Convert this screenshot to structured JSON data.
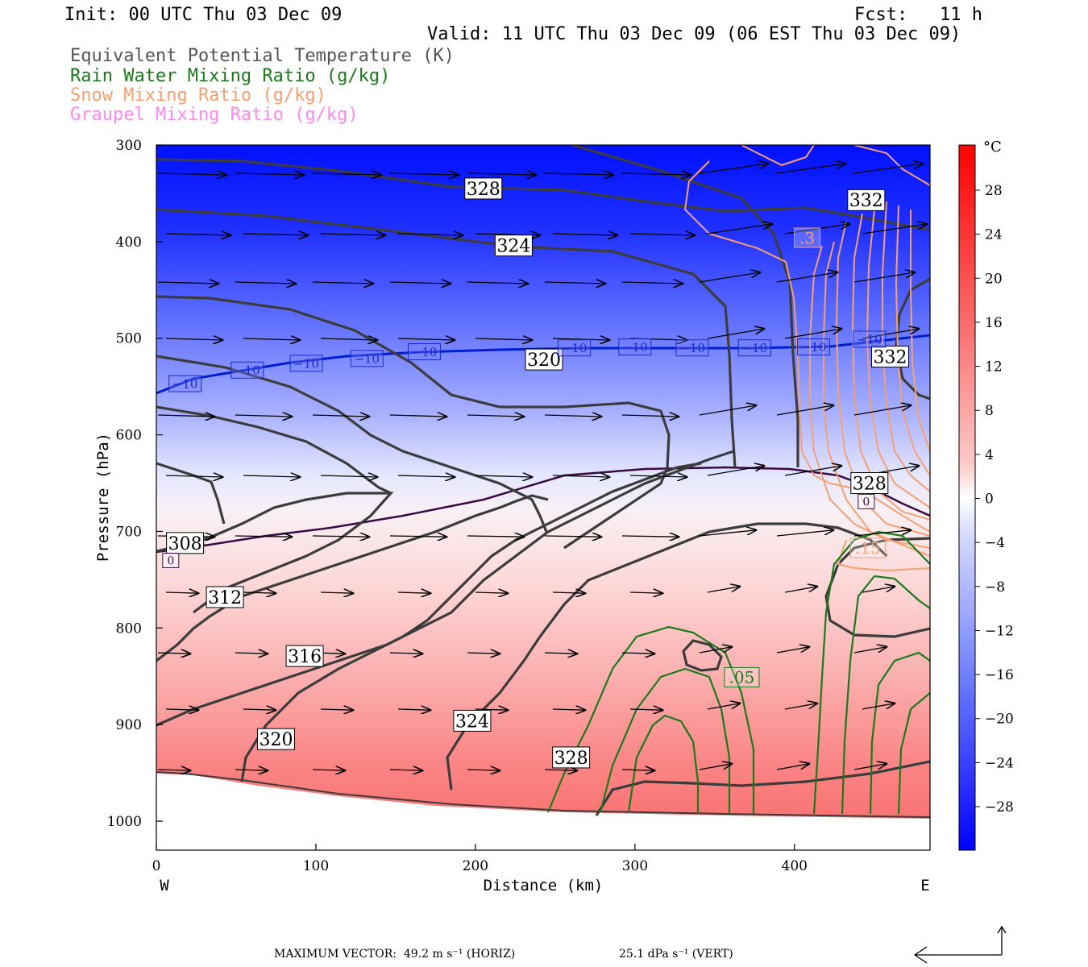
{
  "header": {
    "init": "Init: 00 UTC Thu 03 Dec 09",
    "fcst": "Fcst:   11 h",
    "valid": "Valid: 11 UTC Thu 03 Dec 09 (06 EST Thu 03 Dec 09)"
  },
  "fields": [
    {
      "label": "Equivalent Potential Temperature (K)",
      "color": "#555555"
    },
    {
      "label": "Rain Water Mixing Ratio (g/kg)",
      "color": "#1a7a1a"
    },
    {
      "label": "Snow Mixing Ratio (g/kg)",
      "color": "#f4a070"
    },
    {
      "label": "Graupel Mixing Ratio (g/kg)",
      "color": "#ff88ee"
    }
  ],
  "colorbar": {
    "unit": "°C",
    "ticks": [
      "28",
      "24",
      "20",
      "16",
      "12",
      "8",
      "4",
      "0",
      "−4",
      "−8",
      "−12",
      "−16",
      "−20",
      "−24",
      "−28"
    ]
  },
  "footer": {
    "max_vector": "MAXIMUM VECTOR:  49.2 m s⁻¹ (HORIZ)",
    "vert": "25.1 dPa s⁻¹ (VERT)"
  },
  "chart_data": {
    "type": "contour",
    "xlabel": "Distance (km)",
    "ylabel": "Pressure (hPa)",
    "xlim": [
      0,
      485
    ],
    "ylim": [
      1030,
      300
    ],
    "x_ticks": [
      0,
      100,
      200,
      300,
      400
    ],
    "y_ticks": [
      300,
      400,
      500,
      600,
      700,
      800,
      900,
      1000
    ],
    "x_end_labels": {
      "left": "W",
      "right": "E"
    },
    "theta_e_labels": [
      {
        "text": "328",
        "x": 205,
        "p": 345
      },
      {
        "text": "324",
        "x": 224,
        "p": 404
      },
      {
        "text": "320",
        "x": 243,
        "p": 522
      },
      {
        "text": "332",
        "x": 445,
        "p": 357
      },
      {
        "text": "332",
        "x": 460,
        "p": 519
      },
      {
        "text": "328",
        "x": 447,
        "p": 650
      },
      {
        "text": "308",
        "x": 18,
        "p": 712
      },
      {
        "text": "312",
        "x": 43,
        "p": 768
      },
      {
        "text": "316",
        "x": 93,
        "p": 829
      },
      {
        "text": "320",
        "x": 75,
        "p": 915
      },
      {
        "text": "324",
        "x": 198,
        "p": 896
      },
      {
        "text": "328",
        "x": 260,
        "p": 934
      }
    ],
    "isotherm_labels": [
      {
        "text": "−10",
        "x": 18,
        "p": 547
      },
      {
        "text": "−10",
        "x": 57,
        "p": 533
      },
      {
        "text": "−10",
        "x": 94,
        "p": 526
      },
      {
        "text": "−10",
        "x": 132,
        "p": 521
      },
      {
        "text": "−10",
        "x": 168,
        "p": 514
      },
      {
        "text": "−10",
        "x": 262,
        "p": 510
      },
      {
        "text": "−10",
        "x": 300,
        "p": 509
      },
      {
        "text": "−10",
        "x": 336,
        "p": 510
      },
      {
        "text": "−10",
        "x": 375,
        "p": 510
      },
      {
        "text": "−10",
        "x": 412,
        "p": 509
      },
      {
        "text": "−10",
        "x": 447,
        "p": 501
      }
    ],
    "zero_labels": [
      {
        "text": "0",
        "x": 9,
        "p": 730
      },
      {
        "text": "0",
        "x": 445,
        "p": 669
      }
    ],
    "mixing_labels": [
      {
        "text": ".3",
        "x": 408,
        "p": 396,
        "color": "#f4a070"
      },
      {
        "text": ".15",
        "x": 446,
        "p": 717,
        "color": "#f4a070"
      },
      {
        "text": ".05",
        "x": 367,
        "p": 851,
        "color": "#1a7a1a"
      }
    ]
  }
}
